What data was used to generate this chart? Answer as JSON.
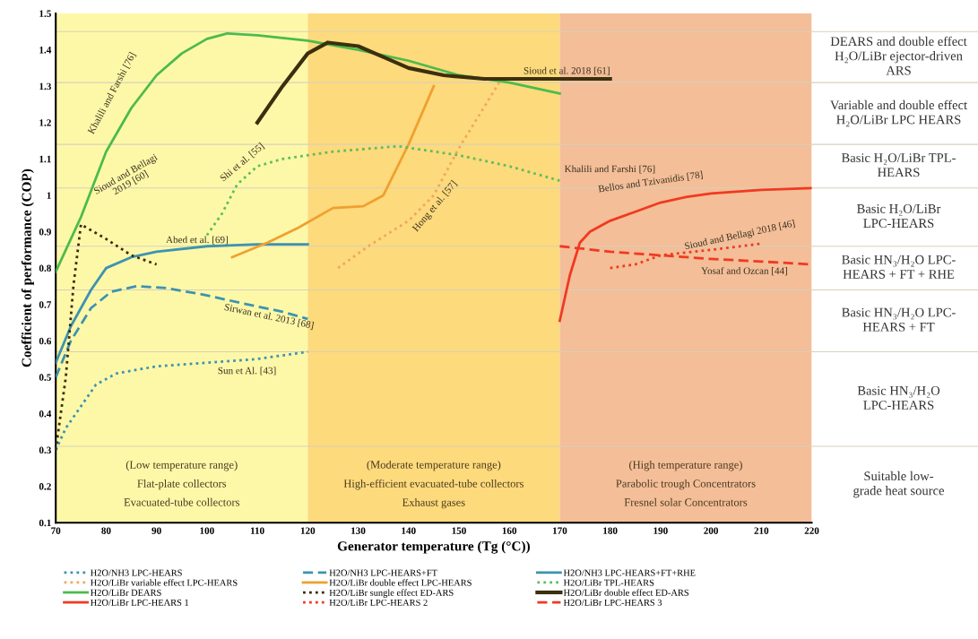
{
  "chart_data": {
    "type": "line",
    "xlabel": "Generator temperature (Tg (°C))",
    "ylabel": "Coefficient of performance (COP)",
    "xlim": [
      70,
      220
    ],
    "ylim": [
      0.1,
      1.5
    ],
    "xticks": [
      70,
      80,
      90,
      100,
      110,
      120,
      130,
      140,
      150,
      160,
      170,
      180,
      190,
      200,
      210,
      220
    ],
    "yticks": [
      0.1,
      0.2,
      0.3,
      0.4,
      0.5,
      0.6,
      0.7,
      0.8,
      0.9,
      1,
      1.1,
      1.2,
      1.3,
      1.4,
      1.5
    ],
    "grid": false,
    "legend": "bottom",
    "marker": "none",
    "bands": [
      {
        "axis": "x",
        "from": 70,
        "to": 120,
        "color": "#fdf8a8",
        "label": "(Low temperature range)\nFlat-plate collectors\nEvacuated-tube collectors"
      },
      {
        "axis": "x",
        "from": 120,
        "to": 170,
        "color": "#fdda7c",
        "label": "(Moderate temperature range)\nHigh-efficient evacuated-tube collectors\nExhaust gases"
      },
      {
        "axis": "x",
        "from": 170,
        "to": 220,
        "color": "#f3be98",
        "label": "(High temperature range)\nParabolic trough Concentrators\nFresnel solar Concentrators"
      }
    ],
    "ref_lines": [
      {
        "axis": "y",
        "value": 1.45,
        "color": "#d8d0b8",
        "label": "DEARS and double effect\nH₂O/LiBr ejector-driven\nARS"
      },
      {
        "axis": "y",
        "value": 1.31,
        "color": "#d8d0b8",
        "label": "Variable and double effect\nH₂O/LiBr LPC HEARS"
      },
      {
        "axis": "y",
        "value": 1.14,
        "color": "#d8d0b8",
        "label": "Basic H₂O/LiBr TPL-\nHEARS"
      },
      {
        "axis": "y",
        "value": 1.02,
        "color": "#d8d0b8",
        "label": "Basic H₂O/LiBr\nLPC-HEARS"
      },
      {
        "axis": "y",
        "value": 0.86,
        "color": "#d8d0b8",
        "label": "Basic HN₃/H₂O LPC-\nHEARS + FT + RHE"
      },
      {
        "axis": "y",
        "value": 0.74,
        "color": "#d8d0b8",
        "label": "Basic HN₃/H₂O LPC-\nHEARS + FT"
      },
      {
        "axis": "y",
        "value": 0.57,
        "color": "#d8d0b8",
        "label": "Basic HN₃/H₂O\nLPC-HEARS"
      },
      {
        "axis": "y",
        "value": 0.31,
        "color": "#d8d0b8",
        "label": "Suitable low-\ngrade heat source"
      }
    ],
    "series": [
      {
        "name": "H2O/NH3 LPC-HEARS",
        "color": "#3d93b0",
        "line_style": "dotted",
        "x": [
          70,
          72,
          75,
          78,
          82,
          90,
          100,
          110,
          120
        ],
        "values": [
          0.3,
          0.36,
          0.42,
          0.48,
          0.51,
          0.53,
          0.54,
          0.55,
          0.57
        ]
      },
      {
        "name": "H2O/NH3 LPC-HEARS+FT",
        "color": "#3d93b0",
        "line_style": "dashed",
        "x": [
          70,
          73,
          77,
          81,
          86,
          92,
          100,
          108,
          115,
          120
        ],
        "values": [
          0.5,
          0.6,
          0.69,
          0.735,
          0.75,
          0.745,
          0.725,
          0.7,
          0.68,
          0.66
        ]
      },
      {
        "name": "H2O/NH3 LPC-HEARS+FT+RHE",
        "color": "#3d93b0",
        "line_style": "solid",
        "x": [
          70,
          73,
          77,
          80,
          85,
          90,
          100,
          110,
          120
        ],
        "values": [
          0.54,
          0.64,
          0.74,
          0.8,
          0.83,
          0.845,
          0.86,
          0.865,
          0.865
        ]
      },
      {
        "name": "H2O/LiBr variable effect LPC-HEARS",
        "color": "#f0a860",
        "line_style": "dotted",
        "x": [
          126,
          132,
          140,
          145,
          150,
          154,
          158
        ],
        "values": [
          0.8,
          0.86,
          0.93,
          1.0,
          1.13,
          1.22,
          1.31
        ]
      },
      {
        "name": "H2O/LiBr double effect LPC-HEARS",
        "color": "#f0a030",
        "line_style": "solid",
        "x": [
          105,
          112,
          118,
          125,
          131,
          135,
          140,
          145
        ],
        "values": [
          0.83,
          0.87,
          0.91,
          0.965,
          0.97,
          1.0,
          1.14,
          1.3
        ]
      },
      {
        "name": "H2O/LiBr TPL-HEARS",
        "color": "#5cbf5c",
        "line_style": "dotted",
        "x": [
          100,
          103,
          106,
          110,
          115,
          125,
          138,
          150,
          160,
          170
        ],
        "values": [
          0.89,
          0.95,
          1.03,
          1.08,
          1.1,
          1.12,
          1.135,
          1.11,
          1.08,
          1.04
        ]
      },
      {
        "name": "H2O/LiBr DEARS",
        "color": "#4cbb4c",
        "line_style": "solid",
        "x": [
          70,
          75,
          80,
          85,
          90,
          95,
          100,
          104,
          110,
          120,
          130,
          140,
          150,
          160,
          170
        ],
        "values": [
          0.79,
          0.94,
          1.12,
          1.24,
          1.33,
          1.39,
          1.43,
          1.445,
          1.44,
          1.425,
          1.4,
          1.37,
          1.33,
          1.31,
          1.28
        ]
      },
      {
        "name": "H2O/LiBr sungle effect ED-ARS",
        "color": "#3a2a10",
        "line_style": "dotted",
        "x": [
          70,
          72,
          73.5,
          75,
          80,
          85,
          90
        ],
        "values": [
          0.3,
          0.5,
          0.75,
          0.92,
          0.88,
          0.835,
          0.81
        ]
      },
      {
        "name": "H2O/LiBr double effect ED-ARS",
        "color": "#3b2f0f",
        "line_style": "solid",
        "x": [
          110,
          115,
          120,
          124,
          130,
          135,
          140,
          147,
          155,
          180
        ],
        "values": [
          1.2,
          1.3,
          1.39,
          1.42,
          1.41,
          1.38,
          1.35,
          1.33,
          1.32,
          1.32
        ]
      },
      {
        "name": "H2O/LiBr LPC-HEARS 1",
        "color": "#f03a20",
        "line_style": "solid",
        "x": [
          170,
          172,
          174,
          176,
          180,
          185,
          190,
          195,
          200,
          210,
          220
        ],
        "values": [
          0.655,
          0.78,
          0.87,
          0.9,
          0.93,
          0.955,
          0.98,
          0.995,
          1.005,
          1.015,
          1.02
        ]
      },
      {
        "name": "H2O/LiBr LPC-HEARS 2",
        "color": "#f03a20",
        "line_style": "dotted",
        "x": [
          180,
          185,
          190,
          200,
          210
        ],
        "values": [
          0.8,
          0.81,
          0.835,
          0.85,
          0.867
        ]
      },
      {
        "name": "H2O/LiBr LPC-HEARS 3",
        "color": "#f03a20",
        "line_style": "dashed",
        "x": [
          170,
          180,
          190,
          200,
          210,
          220
        ],
        "values": [
          0.86,
          0.845,
          0.835,
          0.825,
          0.818,
          0.81
        ]
      }
    ],
    "annotations": [
      "Khalili and Farshi [76]",
      "Sioud and Bellagi\n2019 [60]",
      "Shi et al. [55]",
      "Abed et al. [69]",
      "Sirwan et al. 2013 [68]",
      "Sun et Al. [43]",
      "Hong et al. [57]",
      "Sioud et al. 2018 [61]",
      "Khalili and Farshi [76]",
      "Bellos and Tzivanidis [78]",
      "Sioud and Bellagi 2018 [46]",
      "Yosaf and Ozcan [44]"
    ]
  }
}
